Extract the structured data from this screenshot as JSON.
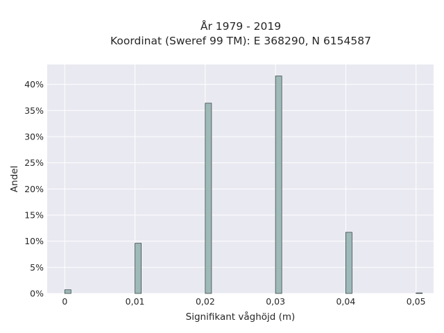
{
  "chart_data": {
    "type": "bar",
    "title": "År 1979 - 2019",
    "subtitle": "Koordinat (Sweref 99 TM): E 368290, N 6154587",
    "xlabel": "Signifikant våghöjd (m)",
    "ylabel": "Andel",
    "x": [
      0.0,
      0.01,
      0.02,
      0.03,
      0.04,
      0.05
    ],
    "values": [
      0.7,
      9.6,
      36.4,
      41.6,
      11.7,
      0.1
    ],
    "xticks": [
      {
        "value": 0.0,
        "label": "0"
      },
      {
        "value": 0.01,
        "label": "0,01"
      },
      {
        "value": 0.02,
        "label": "0,02"
      },
      {
        "value": 0.03,
        "label": "0,03"
      },
      {
        "value": 0.04,
        "label": "0,04"
      },
      {
        "value": 0.05,
        "label": "0,05"
      }
    ],
    "yticks": [
      {
        "value": 0,
        "label": "0%"
      },
      {
        "value": 5,
        "label": "5%"
      },
      {
        "value": 10,
        "label": "10%"
      },
      {
        "value": 15,
        "label": "15%"
      },
      {
        "value": 20,
        "label": "20%"
      },
      {
        "value": 25,
        "label": "25%"
      },
      {
        "value": 30,
        "label": "30%"
      },
      {
        "value": 35,
        "label": "35%"
      },
      {
        "value": 40,
        "label": "40%"
      }
    ],
    "xlim": [
      -0.0025,
      0.0525
    ],
    "ylim": [
      0,
      43.8
    ],
    "grid": true,
    "colors": {
      "plot_background": "#e9e9f1",
      "grid": "#ffffff",
      "bar_fill": "#9fb9b9",
      "bar_edge": "#3a4a4a"
    }
  }
}
